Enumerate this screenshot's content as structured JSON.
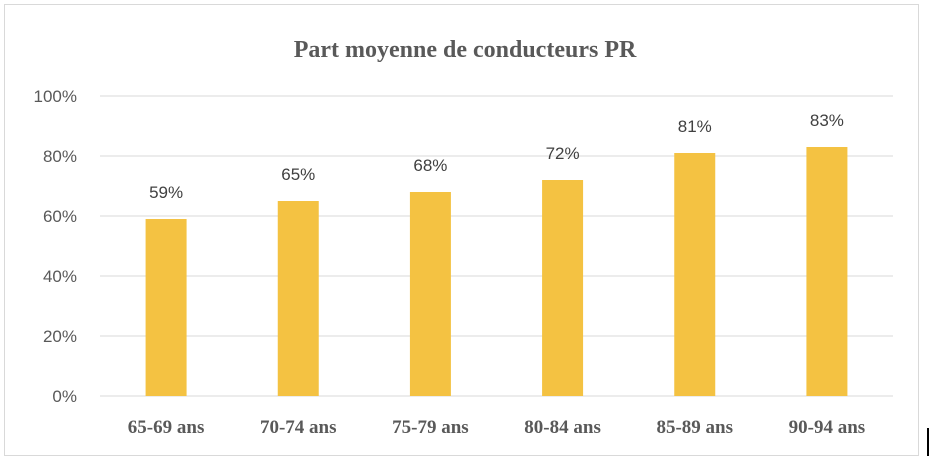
{
  "chart_data": {
    "type": "bar",
    "title": "Part moyenne de conducteurs PR",
    "xlabel": "",
    "ylabel": "",
    "categories": [
      "65-69 ans",
      "70-74 ans",
      "75-79 ans",
      "80-84 ans",
      "85-89 ans",
      "90-94 ans"
    ],
    "values": [
      59,
      65,
      68,
      72,
      81,
      83
    ],
    "data_labels": [
      "59%",
      "65%",
      "68%",
      "72%",
      "81%",
      "83%"
    ],
    "ylim": [
      0,
      100
    ],
    "yticks": [
      0,
      20,
      40,
      60,
      80,
      100
    ],
    "ytick_labels": [
      "0%",
      "20%",
      "40%",
      "60%",
      "80%",
      "100%"
    ],
    "grid": true,
    "legend": "none",
    "colors": {
      "bar": "#F4C242",
      "grid": "#d9d9d9",
      "text": "#595959",
      "label": "#404040"
    }
  }
}
